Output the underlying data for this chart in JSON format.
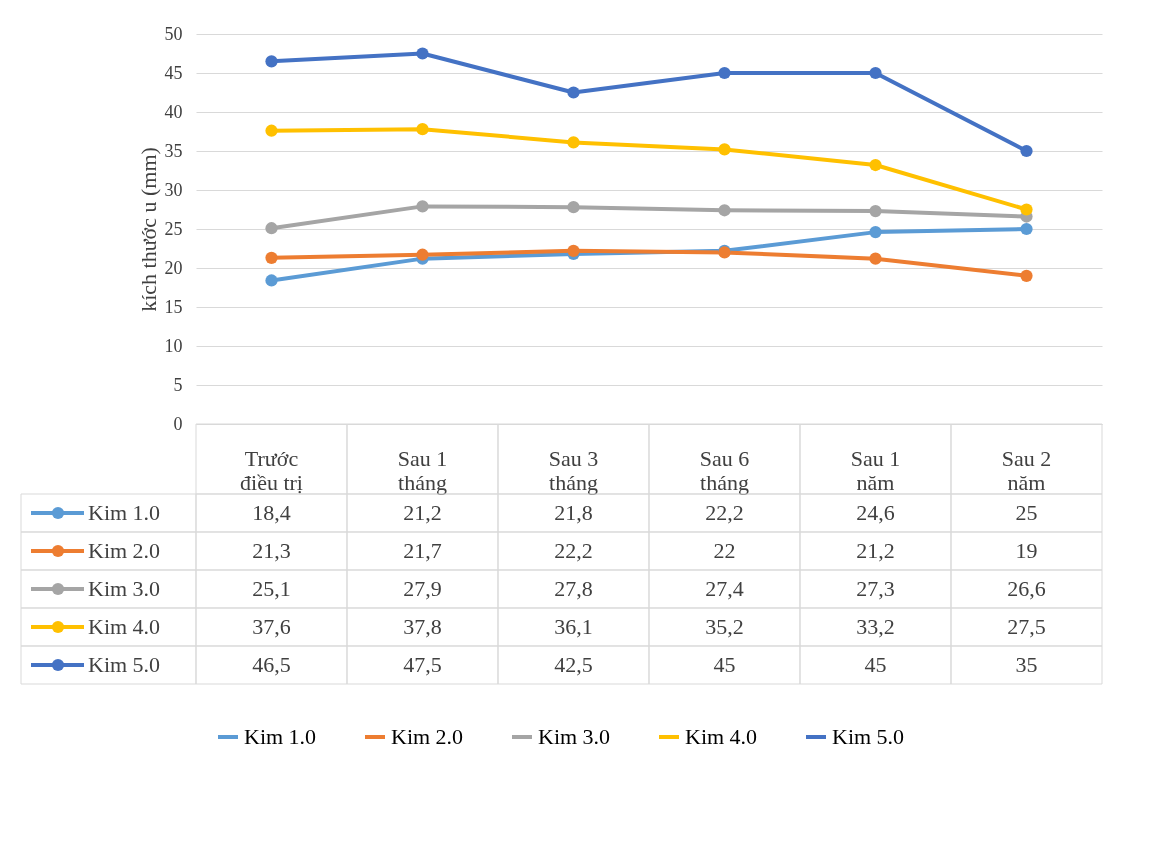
{
  "chart_data": {
    "type": "line",
    "ylabel": "kích thước u (mm)",
    "categories": [
      "Trước điều trị",
      "Sau 1 tháng",
      "Sau 3 tháng",
      "Sau 6 tháng",
      "Sau 1 năm",
      "Sau 2 năm"
    ],
    "series": [
      {
        "name": "Kim 1.0",
        "color": "#5b9bd5",
        "values": [
          18.4,
          21.2,
          21.8,
          22.2,
          24.6,
          25
        ],
        "value_labels": [
          "18,4",
          "21,2",
          "21,8",
          "22,2",
          "24,6",
          "25"
        ]
      },
      {
        "name": "Kim 2.0",
        "color": "#ed7d31",
        "values": [
          21.3,
          21.7,
          22.2,
          22,
          21.2,
          19
        ],
        "value_labels": [
          "21,3",
          "21,7",
          "22,2",
          "22",
          "21,2",
          "19"
        ]
      },
      {
        "name": "Kim 3.0",
        "color": "#a5a5a5",
        "values": [
          25.1,
          27.9,
          27.8,
          27.4,
          27.3,
          26.6
        ],
        "value_labels": [
          "25,1",
          "27,9",
          "27,8",
          "27,4",
          "27,3",
          "26,6"
        ]
      },
      {
        "name": "Kim 4.0",
        "color": "#ffc000",
        "values": [
          37.6,
          37.8,
          36.1,
          35.2,
          33.2,
          27.5
        ],
        "value_labels": [
          "37,6",
          "37,8",
          "36,1",
          "35,2",
          "33,2",
          "27,5"
        ]
      },
      {
        "name": "Kim 5.0",
        "color": "#4472c4",
        "values": [
          46.5,
          47.5,
          42.5,
          45,
          45,
          35
        ],
        "value_labels": [
          "46,5",
          "47,5",
          "42,5",
          "45",
          "45",
          "35"
        ]
      }
    ],
    "ylim": [
      0,
      50
    ],
    "yticks": [
      0,
      5,
      10,
      15,
      20,
      25,
      30,
      35,
      40,
      45,
      50
    ],
    "grid": "y",
    "legend": "bottom",
    "marker": "circle"
  }
}
